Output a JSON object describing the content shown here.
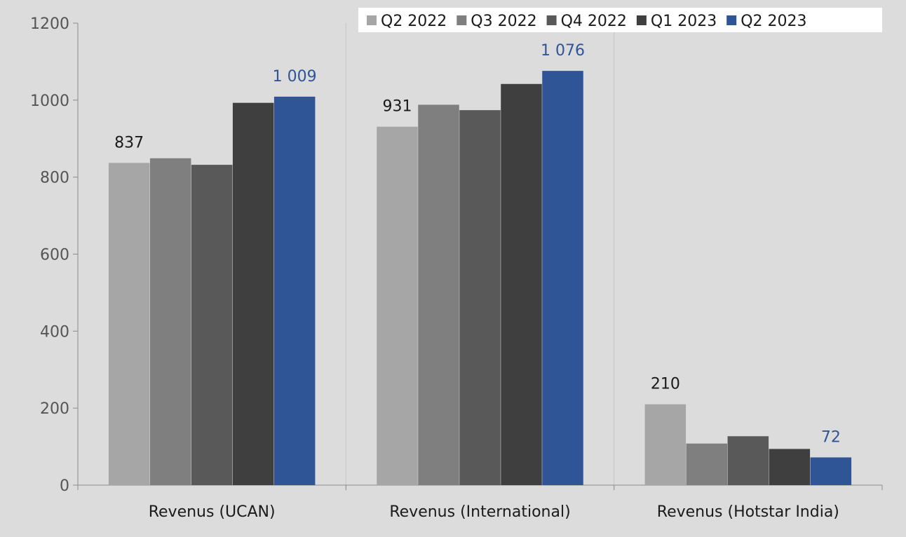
{
  "chart_data": {
    "type": "bar",
    "categories": [
      "Revenus (UCAN)",
      "Revenus (International)",
      "Revenus (Hotstar India)"
    ],
    "series": [
      {
        "name": "Q2 2022",
        "color": "#a6a6a6",
        "values": [
          837,
          931,
          210
        ]
      },
      {
        "name": "Q3 2022",
        "color": "#7f7f7f",
        "values": [
          849,
          988,
          108
        ]
      },
      {
        "name": "Q4 2022",
        "color": "#595959",
        "values": [
          832,
          974,
          127
        ]
      },
      {
        "name": "Q1 2023",
        "color": "#3f3f3f",
        "values": [
          993,
          1042,
          94
        ]
      },
      {
        "name": "Q2 2023",
        "color": "#2f5597",
        "values": [
          1009,
          1076,
          72
        ]
      }
    ],
    "data_labels": [
      {
        "series": 0,
        "category": 0,
        "text": "837"
      },
      {
        "series": 4,
        "category": 0,
        "text": "1 009"
      },
      {
        "series": 0,
        "category": 1,
        "text": "931"
      },
      {
        "series": 4,
        "category": 1,
        "text": "1 076"
      },
      {
        "series": 0,
        "category": 2,
        "text": "210"
      },
      {
        "series": 4,
        "category": 2,
        "text": "72"
      }
    ],
    "yticks": [
      "0",
      "200",
      "400",
      "600",
      "800",
      "1000",
      "1200"
    ],
    "ylim": [
      0,
      1200
    ],
    "title": "",
    "xlabel": "",
    "ylabel": "",
    "legend_position": "top-right",
    "grid": false,
    "background_color": "#dcdcdc"
  }
}
